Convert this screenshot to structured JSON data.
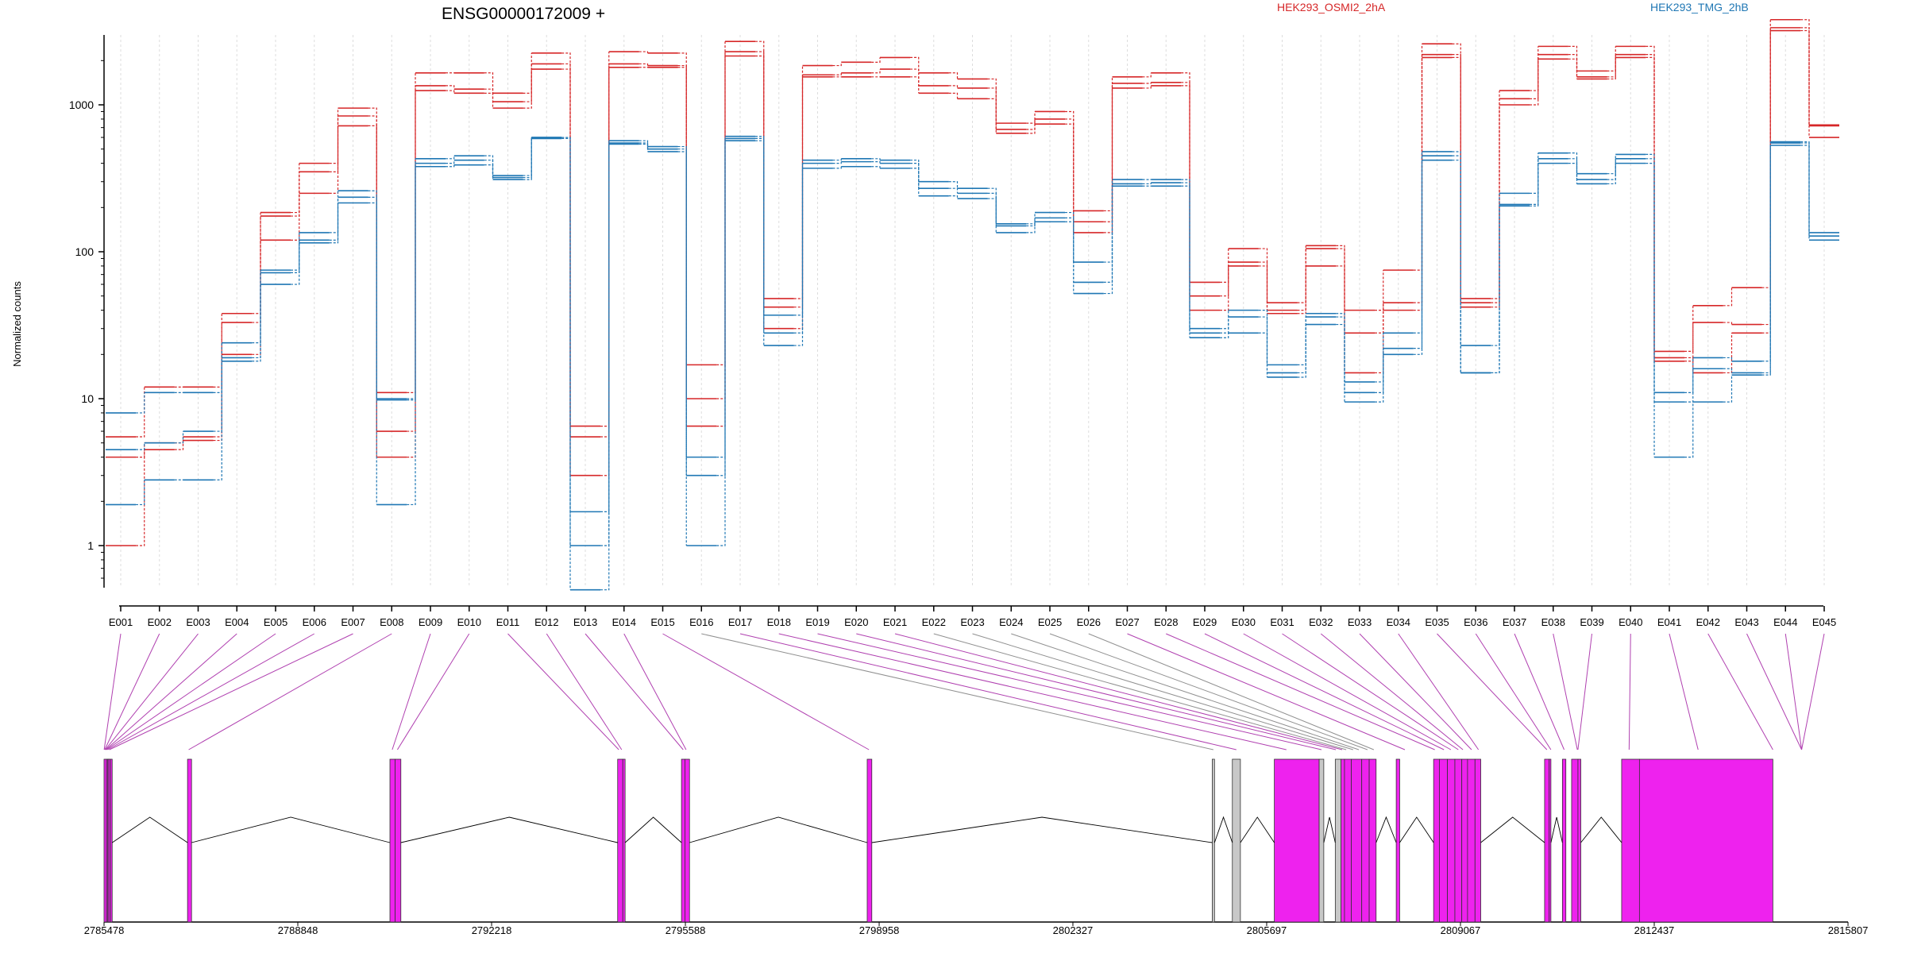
{
  "chart_data": {
    "type": "line",
    "title": "ENSG00000172009 +",
    "ylabel": "Normalized counts",
    "xlabel": "",
    "yscale": "log",
    "ylim": [
      0.3,
      6000
    ],
    "yticks": [
      1,
      10,
      100,
      1000
    ],
    "yticklabels": [
      "1",
      "10",
      "100",
      "1000"
    ],
    "grid": "vertical dashed",
    "legend_placement": "top",
    "categories": [
      "E001",
      "E002",
      "E003",
      "E004",
      "E005",
      "E006",
      "E007",
      "E008",
      "E009",
      "E010",
      "E011",
      "E012",
      "E013",
      "E014",
      "E015",
      "E016",
      "E017",
      "E018",
      "E019",
      "E020",
      "E021",
      "E022",
      "E023",
      "E024",
      "E025",
      "E026",
      "E027",
      "E028",
      "E029",
      "E030",
      "E031",
      "E032",
      "E033",
      "E034",
      "E035",
      "E036",
      "E037",
      "E038",
      "E039",
      "E040",
      "E041",
      "E042",
      "E043",
      "E044",
      "E045"
    ],
    "series": [
      {
        "name": "HEK293_OSMI2_2hA",
        "color": "#d62728",
        "group": "HEK293_OSMI2_2hA",
        "values": [
          5.5,
          12,
          12,
          38,
          185,
          400,
          950,
          11,
          1650,
          1650,
          1200,
          2250,
          6.5,
          2300,
          2250,
          17,
          2700,
          48,
          1850,
          1950,
          2100,
          1650,
          1500,
          750,
          900,
          190,
          1550,
          1650,
          62,
          105,
          45,
          110,
          40,
          75,
          2600,
          48,
          1250,
          2500,
          1700,
          2500,
          21,
          43,
          57,
          3800,
          720
        ]
      },
      {
        "name": "HEK293_OSMI2_2hA",
        "color": "#d62728",
        "group": "HEK293_OSMI2_2hA",
        "values": [
          4,
          4.5,
          5.5,
          20,
          120,
          250,
          720,
          4,
          1250,
          1200,
          950,
          1750,
          3,
          1800,
          1800,
          6.5,
          2150,
          30,
          1550,
          1550,
          1550,
          1200,
          1100,
          640,
          740,
          135,
          1300,
          1350,
          40,
          85,
          38,
          80,
          15,
          40,
          2100,
          42,
          1000,
          2050,
          1500,
          2100,
          18,
          33,
          32,
          3200,
          600
        ]
      },
      {
        "name": "HEK293_OSMI2_2hA",
        "color": "#d62728",
        "group": "HEK293_OSMI2_2hA",
        "values": [
          1,
          5,
          5.2,
          33,
          175,
          350,
          840,
          6,
          1350,
          1280,
          1050,
          1900,
          5.5,
          1900,
          1850,
          10,
          2300,
          42,
          1600,
          1650,
          1750,
          1350,
          1300,
          680,
          800,
          160,
          1400,
          1420,
          50,
          80,
          40,
          105,
          28,
          45,
          2200,
          45,
          1100,
          2200,
          1550,
          2200,
          19,
          15,
          28,
          3350,
          730
        ]
      },
      {
        "name": "HEK293_TMG_2hB",
        "color": "#1f77b4",
        "group": "HEK293_TMG_2hB",
        "values": [
          8,
          11,
          11,
          24,
          75,
          135,
          260,
          1.9,
          430,
          450,
          330,
          600,
          1.7,
          570,
          520,
          4,
          610,
          37,
          420,
          430,
          420,
          300,
          270,
          155,
          185,
          85,
          310,
          310,
          30,
          40,
          17,
          38,
          13,
          28,
          480,
          23,
          250,
          470,
          340,
          460,
          11,
          19,
          18,
          560,
          135
        ]
      },
      {
        "name": "HEK293_TMG_2hB",
        "color": "#1f77b4",
        "group": "HEK293_TMG_2hB",
        "values": [
          4.5,
          5,
          6,
          18,
          60,
          115,
          215,
          10,
          380,
          390,
          310,
          590,
          1,
          540,
          480,
          1,
          570,
          23,
          370,
          380,
          370,
          240,
          230,
          135,
          160,
          52,
          280,
          280,
          26,
          28,
          14,
          32,
          9.5,
          20,
          420,
          15,
          205,
          400,
          290,
          400,
          4,
          9.5,
          14.5,
          530,
          120
        ]
      },
      {
        "name": "HEK293_TMG_2hB",
        "color": "#1f77b4",
        "group": "HEK293_TMG_2hB",
        "values": [
          1.9,
          2.8,
          2.8,
          19,
          72,
          120,
          235,
          9.8,
          400,
          420,
          320,
          600,
          0.5,
          550,
          500,
          3,
          590,
          28,
          400,
          410,
          400,
          270,
          250,
          150,
          170,
          62,
          290,
          295,
          28,
          36,
          15,
          36,
          11,
          22,
          450,
          15,
          210,
          430,
          310,
          430,
          9.5,
          16,
          15,
          550,
          128
        ]
      }
    ]
  },
  "legend": {
    "items": [
      {
        "label": "HEK293_OSMI2_2hA",
        "color": "#d62728"
      },
      {
        "label": "HEK293_TMG_2hB",
        "color": "#1f77b4"
      }
    ]
  },
  "gene_model": {
    "coordinate_labels": [
      "2785478",
      "2788848",
      "2792218",
      "2795588",
      "2798958",
      "2802327",
      "2805697",
      "2809067",
      "2812437",
      "2815807"
    ],
    "exon_color": "#ee22ee",
    "nontested_color": "#c8c8c8",
    "connector_color_tested": "#b040b0",
    "connector_color_untested": "#909090",
    "untested_exons": [
      "E016",
      "E022",
      "E023",
      "E024",
      "E025",
      "E026"
    ]
  }
}
